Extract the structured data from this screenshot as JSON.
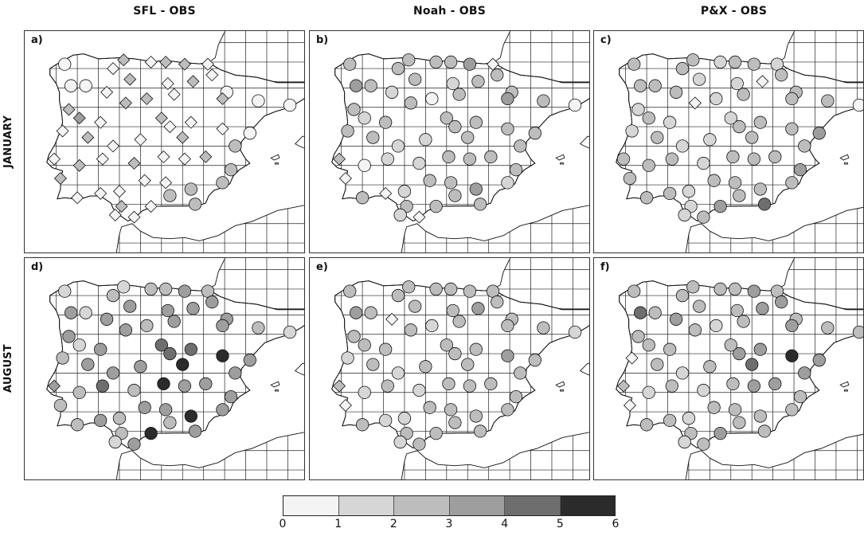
{
  "columns": [
    "SFL - OBS",
    "Noah - OBS",
    "P&X - OBS"
  ],
  "rows": [
    "JANUARY",
    "AUGUST"
  ],
  "panel_labels": [
    "a)",
    "b)",
    "c)",
    "d)",
    "e)",
    "f)"
  ],
  "colorbar": {
    "ticks": [
      "0",
      "1",
      "2",
      "3",
      "4",
      "5",
      "6"
    ],
    "colors": [
      "#f4f4f4",
      "#d6d6d6",
      "#bdbdbd",
      "#9e9e9e",
      "#6e6e6e",
      "#2b2b2b"
    ]
  },
  "colors": {
    "land": "#ffffff",
    "coast": "#111111",
    "grid": "#222222",
    "marker_stroke": "#111111"
  },
  "stations": [
    {
      "id": 1,
      "lon": -8.6,
      "lat": 43.3
    },
    {
      "id": 2,
      "lon": -8.3,
      "lat": 42.3
    },
    {
      "id": 3,
      "lon": -7.6,
      "lat": 42.3
    },
    {
      "id": 4,
      "lon": -6.3,
      "lat": 43.1
    },
    {
      "id": 5,
      "lon": -5.8,
      "lat": 43.5
    },
    {
      "id": 6,
      "lon": -4.5,
      "lat": 43.4
    },
    {
      "id": 7,
      "lon": -3.8,
      "lat": 43.4
    },
    {
      "id": 8,
      "lon": -2.9,
      "lat": 43.3
    },
    {
      "id": 9,
      "lon": -1.8,
      "lat": 43.3
    },
    {
      "id": 10,
      "lon": -1.6,
      "lat": 42.8
    },
    {
      "id": 11,
      "lon": -2.5,
      "lat": 42.5
    },
    {
      "id": 12,
      "lon": -3.7,
      "lat": 42.4
    },
    {
      "id": 13,
      "lon": -5.5,
      "lat": 42.6
    },
    {
      "id": 14,
      "lon": -6.6,
      "lat": 42.0
    },
    {
      "id": 15,
      "lon": -5.7,
      "lat": 41.5
    },
    {
      "id": 16,
      "lon": -4.7,
      "lat": 41.7
    },
    {
      "id": 17,
      "lon": -3.4,
      "lat": 41.9
    },
    {
      "id": 18,
      "lon": -0.9,
      "lat": 42.0
    },
    {
      "id": 19,
      "lon": -1.1,
      "lat": 41.7
    },
    {
      "id": 20,
      "lon": 0.6,
      "lat": 41.6
    },
    {
      "id": 21,
      "lon": 2.1,
      "lat": 41.4
    },
    {
      "id": 22,
      "lon": -8.4,
      "lat": 41.2
    },
    {
      "id": 23,
      "lon": -7.9,
      "lat": 40.8
    },
    {
      "id": 24,
      "lon": -6.9,
      "lat": 40.6
    },
    {
      "id": 25,
      "lon": -4.0,
      "lat": 40.8
    },
    {
      "id": 26,
      "lon": -3.6,
      "lat": 40.4
    },
    {
      "id": 27,
      "lon": -2.6,
      "lat": 40.6
    },
    {
      "id": 28,
      "lon": -1.1,
      "lat": 40.3
    },
    {
      "id": 29,
      "lon": 0.2,
      "lat": 40.1
    },
    {
      "id": 30,
      "lon": -8.7,
      "lat": 40.2
    },
    {
      "id": 31,
      "lon": -7.5,
      "lat": 39.9
    },
    {
      "id": 32,
      "lon": -6.3,
      "lat": 39.5
    },
    {
      "id": 33,
      "lon": -5.0,
      "lat": 39.8
    },
    {
      "id": 34,
      "lon": -3.0,
      "lat": 39.9
    },
    {
      "id": 35,
      "lon": -1.9,
      "lat": 39.0
    },
    {
      "id": 36,
      "lon": -0.5,
      "lat": 39.5
    },
    {
      "id": 37,
      "lon": -9.1,
      "lat": 38.9
    },
    {
      "id": 38,
      "lon": -7.9,
      "lat": 38.6
    },
    {
      "id": 39,
      "lon": -6.8,
      "lat": 38.9
    },
    {
      "id": 40,
      "lon": -5.3,
      "lat": 38.7
    },
    {
      "id": 41,
      "lon": -3.9,
      "lat": 39.0
    },
    {
      "id": 42,
      "lon": -2.9,
      "lat": 38.9
    },
    {
      "id": 43,
      "lon": -0.7,
      "lat": 38.4
    },
    {
      "id": 44,
      "lon": -8.8,
      "lat": 38.0
    },
    {
      "id": 45,
      "lon": -6.0,
      "lat": 37.4
    },
    {
      "id": 46,
      "lon": -4.8,
      "lat": 37.9
    },
    {
      "id": 47,
      "lon": -3.8,
      "lat": 37.8
    },
    {
      "id": 48,
      "lon": -2.6,
      "lat": 37.5
    },
    {
      "id": 49,
      "lon": -1.1,
      "lat": 37.8
    },
    {
      "id": 50,
      "lon": -8.0,
      "lat": 37.1
    },
    {
      "id": 51,
      "lon": -6.9,
      "lat": 37.3
    },
    {
      "id": 52,
      "lon": -5.9,
      "lat": 36.7
    },
    {
      "id": 53,
      "lon": -4.5,
      "lat": 36.7
    },
    {
      "id": 54,
      "lon": -3.6,
      "lat": 37.2
    },
    {
      "id": 55,
      "lon": -2.4,
      "lat": 36.8
    },
    {
      "id": 56,
      "lon": -6.2,
      "lat": 36.3
    },
    {
      "id": 57,
      "lon": -5.3,
      "lat": 36.2
    }
  ],
  "panels": [
    {
      "label": "a)",
      "markers": {
        "1": "C",
        "2": "C",
        "3": "C",
        "4": "D",
        "5": "D",
        "6": "D",
        "7": "D",
        "8": "D",
        "9": "D",
        "10": "D",
        "11": "D",
        "12": "D",
        "13": "D",
        "14": "D",
        "15": "D",
        "16": "D",
        "17": "D",
        "18": "C",
        "19": "D",
        "20": "C",
        "21": "C",
        "22": "D",
        "23": "D",
        "24": "D",
        "25": "D",
        "26": "D",
        "27": "D",
        "28": "D",
        "29": "C",
        "30": "D",
        "31": "D",
        "32": "D",
        "33": "D",
        "34": "D",
        "35": "D",
        "36": "C",
        "37": "D",
        "38": "D",
        "39": "D",
        "40": "D",
        "41": "D",
        "42": "D",
        "43": "C",
        "44": "D",
        "45": "D",
        "46": "D",
        "47": "D",
        "48": "C",
        "49": "C",
        "50": "D",
        "51": "D",
        "52": "D",
        "53": "D",
        "54": "C",
        "55": "C",
        "56": "D",
        "57": "D"
      },
      "values": {
        "1": 0.8,
        "2": 0.8,
        "3": 0.8,
        "4": 0.8,
        "5": 2.6,
        "6": 0.8,
        "7": 2.5,
        "8": 2.6,
        "9": 0.7,
        "10": 0.8,
        "11": 2.6,
        "12": 0.8,
        "13": 2.5,
        "14": 0.8,
        "15": 2.5,
        "16": 2.5,
        "17": 0.8,
        "18": 0.8,
        "19": 2.4,
        "20": 0.8,
        "21": 0.8,
        "22": 2.4,
        "23": 3.4,
        "24": 0.8,
        "25": 2.4,
        "26": 0.8,
        "27": 0.8,
        "28": 0.8,
        "29": 0.8,
        "30": 0.8,
        "31": 2.3,
        "32": 0.8,
        "33": 0.8,
        "34": 2.3,
        "35": 2.4,
        "36": 2.0,
        "37": 0.8,
        "38": 2.4,
        "39": 0.8,
        "40": 2.2,
        "41": 0.8,
        "42": 0.8,
        "43": 2.1,
        "44": 2.4,
        "45": 0.8,
        "46": 0.8,
        "47": 0.8,
        "48": 2.4,
        "49": 2.6,
        "50": 0.8,
        "51": 0.8,
        "52": 2.0,
        "53": 0.8,
        "54": 2.8,
        "55": 2.8,
        "56": 0.8,
        "57": 0.8
      }
    },
    {
      "label": "b)",
      "markers": {
        "1": "C",
        "2": "C",
        "3": "C",
        "4": "C",
        "5": "C",
        "6": "C",
        "7": "C",
        "8": "C",
        "9": "D",
        "10": "C",
        "11": "C",
        "12": "C",
        "13": "C",
        "14": "C",
        "15": "C",
        "16": "C",
        "17": "C",
        "18": "C",
        "19": "C",
        "20": "C",
        "21": "C",
        "22": "C",
        "23": "C",
        "24": "C",
        "25": "C",
        "26": "C",
        "27": "C",
        "28": "C",
        "29": "C",
        "30": "C",
        "31": "C",
        "32": "C",
        "33": "C",
        "34": "C",
        "35": "C",
        "36": "C",
        "37": "D",
        "38": "C",
        "39": "C",
        "40": "C",
        "41": "C",
        "42": "C",
        "43": "C",
        "44": "D",
        "45": "C",
        "46": "C",
        "47": "C",
        "48": "C",
        "49": "C",
        "50": "C",
        "51": "D",
        "52": "C",
        "53": "C",
        "54": "C",
        "55": "C",
        "56": "C",
        "57": "D"
      },
      "values": {
        "1": 2.6,
        "2": 3.9,
        "3": 2.2,
        "4": 2.3,
        "5": 2.6,
        "6": 2.4,
        "7": 2.2,
        "8": 3.3,
        "9": 0.8,
        "10": 2.6,
        "11": 2.4,
        "12": 1.6,
        "13": 2.3,
        "14": 1.0,
        "15": 2.5,
        "16": 0.8,
        "17": 2.4,
        "18": 2.5,
        "19": 3.4,
        "20": 2.4,
        "21": 0.8,
        "22": 2.4,
        "23": 1.5,
        "24": 2.6,
        "25": 2.4,
        "26": 2.4,
        "27": 2.5,
        "28": 2.5,
        "29": 2.3,
        "30": 2.5,
        "31": 2.4,
        "32": 1.8,
        "33": 1.0,
        "34": 2.4,
        "35": 2.4,
        "36": 2.3,
        "37": 2.5,
        "38": 0.8,
        "39": 1.8,
        "40": 1.0,
        "41": 2.4,
        "42": 2.4,
        "43": 2.2,
        "44": 0.8,
        "45": 1.0,
        "46": 2.4,
        "47": 2.4,
        "48": 3.5,
        "49": 1.0,
        "50": 2.3,
        "51": 0.8,
        "52": 2.0,
        "53": 2.2,
        "54": 2.4,
        "55": 2.0,
        "56": 1.0,
        "57": 0.8
      }
    },
    {
      "label": "c)",
      "markers": {
        "1": "C",
        "2": "C",
        "3": "C",
        "4": "C",
        "5": "C",
        "6": "C",
        "7": "C",
        "8": "C",
        "9": "C",
        "10": "C",
        "11": "D",
        "12": "C",
        "13": "C",
        "14": "C",
        "15": "D",
        "16": "C",
        "17": "C",
        "18": "C",
        "19": "C",
        "20": "C",
        "21": "C",
        "22": "C",
        "23": "C",
        "24": "C",
        "25": "C",
        "26": "C",
        "27": "C",
        "28": "C",
        "29": "C",
        "30": "C",
        "31": "C",
        "32": "C",
        "33": "C",
        "34": "C",
        "35": "C",
        "36": "C",
        "37": "C",
        "38": "C",
        "39": "C",
        "40": "C",
        "41": "C",
        "42": "C",
        "43": "C",
        "44": "C",
        "45": "C",
        "46": "C",
        "47": "C",
        "48": "C",
        "49": "C",
        "50": "C",
        "51": "C",
        "52": "C",
        "53": "C",
        "54": "C",
        "55": "C",
        "56": "C",
        "57": "C"
      },
      "values": {
        "1": 2.3,
        "2": 2.3,
        "3": 2.3,
        "4": 2.4,
        "5": 2.4,
        "6": 1.0,
        "7": 2.2,
        "8": 2.3,
        "9": 1.0,
        "10": 2.3,
        "11": 0.8,
        "12": 1.0,
        "13": 1.0,
        "14": 2.4,
        "15": 0.8,
        "16": 1.0,
        "17": 2.2,
        "18": 2.3,
        "19": 2.5,
        "20": 2.6,
        "21": 0.8,
        "22": 1.8,
        "23": 2.3,
        "24": 1.8,
        "25": 1.0,
        "26": 2.4,
        "27": 2.6,
        "28": 2.6,
        "29": 3.0,
        "30": 1.8,
        "31": 2.4,
        "32": 1.0,
        "33": 1.0,
        "34": 2.3,
        "35": 2.6,
        "36": 2.6,
        "37": 2.3,
        "38": 2.4,
        "39": 2.3,
        "40": 1.0,
        "41": 2.3,
        "42": 2.3,
        "43": 3.5,
        "44": 2.3,
        "45": 1.8,
        "46": 2.4,
        "47": 2.3,
        "48": 2.3,
        "49": 2.6,
        "50": 2.3,
        "51": 2.5,
        "52": 1.0,
        "53": 3.9,
        "54": 2.5,
        "55": 4.0,
        "56": 1.0,
        "57": 2.3
      }
    },
    {
      "label": "d)",
      "markers": {
        "1": "C",
        "2": "C",
        "3": "C",
        "4": "C",
        "5": "C",
        "6": "C",
        "7": "C",
        "8": "C",
        "9": "C",
        "10": "C",
        "11": "C",
        "12": "C",
        "13": "C",
        "14": "C",
        "15": "C",
        "16": "C",
        "17": "C",
        "18": "C",
        "19": "C",
        "20": "C",
        "21": "C",
        "22": "C",
        "23": "C",
        "24": "C",
        "25": "C",
        "26": "C",
        "27": "C",
        "28": "C",
        "29": "C",
        "30": "C",
        "31": "C",
        "32": "C",
        "33": "C",
        "34": "C",
        "35": "C",
        "36": "C",
        "37": "D",
        "38": "C",
        "39": "C",
        "40": "C",
        "41": "C",
        "42": "C",
        "43": "C",
        "44": "C",
        "45": "C",
        "46": "C",
        "47": "C",
        "48": "C",
        "49": "C",
        "50": "C",
        "51": "C",
        "52": "C",
        "53": "C",
        "54": "C",
        "55": "C",
        "56": "C",
        "57": "C"
      },
      "values": {
        "1": 1.0,
        "2": 3.2,
        "3": 1.0,
        "4": 2.8,
        "5": 1.0,
        "6": 2.4,
        "7": 2.2,
        "8": 3.8,
        "9": 2.6,
        "10": 3.4,
        "11": 3.8,
        "12": 3.4,
        "13": 3.2,
        "14": 3.0,
        "15": 3.2,
        "16": 2.8,
        "17": 3.2,
        "18": 3.3,
        "19": 3.0,
        "20": 2.6,
        "21": 1.8,
        "22": 3.0,
        "23": 1.0,
        "24": 3.3,
        "25": 4.2,
        "26": 4.8,
        "27": 4.5,
        "28": 5.2,
        "29": 3.2,
        "30": 2.5,
        "31": 3.0,
        "32": 3.2,
        "33": 3.5,
        "34": 5.4,
        "35": 3.8,
        "36": 3.2,
        "37": 3.0,
        "38": 2.4,
        "39": 4.0,
        "40": 2.2,
        "41": 5.2,
        "42": 3.8,
        "43": 3.0,
        "44": 2.3,
        "45": 2.3,
        "46": 3.2,
        "47": 3.5,
        "48": 5.8,
        "49": 3.0,
        "50": 2.2,
        "51": 3.5,
        "52": 2.4,
        "53": 5.7,
        "54": 2.6,
        "55": 3.4,
        "56": 1.8,
        "57": 3.4
      }
    },
    {
      "label": "e)",
      "markers": {
        "1": "C",
        "2": "C",
        "3": "C",
        "4": "C",
        "5": "C",
        "6": "C",
        "7": "C",
        "8": "C",
        "9": "C",
        "10": "C",
        "11": "C",
        "12": "C",
        "13": "C",
        "14": "D",
        "15": "C",
        "16": "C",
        "17": "C",
        "18": "C",
        "19": "C",
        "20": "C",
        "21": "C",
        "22": "C",
        "23": "C",
        "24": "C",
        "25": "C",
        "26": "C",
        "27": "C",
        "28": "C",
        "29": "C",
        "30": "C",
        "31": "C",
        "32": "C",
        "33": "C",
        "34": "C",
        "35": "C",
        "36": "C",
        "37": "D",
        "38": "C",
        "39": "C",
        "40": "C",
        "41": "C",
        "42": "C",
        "43": "C",
        "44": "D",
        "45": "C",
        "46": "C",
        "47": "C",
        "48": "C",
        "49": "C",
        "50": "C",
        "51": "C",
        "52": "C",
        "53": "C",
        "54": "C",
        "55": "C",
        "56": "C",
        "57": "C"
      },
      "values": {
        "1": 2.2,
        "2": 3.4,
        "3": 2.2,
        "4": 2.4,
        "5": 2.3,
        "6": 2.3,
        "7": 2.3,
        "8": 2.8,
        "9": 2.4,
        "10": 2.4,
        "11": 3.0,
        "12": 2.3,
        "13": 2.2,
        "14": 0.8,
        "15": 2.6,
        "16": 1.0,
        "17": 2.2,
        "18": 2.5,
        "19": 2.3,
        "20": 2.3,
        "21": 1.0,
        "22": 2.3,
        "23": 2.3,
        "24": 2.2,
        "25": 2.2,
        "26": 2.5,
        "27": 2.3,
        "28": 3.0,
        "29": 2.3,
        "30": 1.0,
        "31": 2.3,
        "32": 1.0,
        "33": 2.4,
        "34": 2.3,
        "35": 2.3,
        "36": 2.6,
        "37": 2.4,
        "38": 1.0,
        "39": 2.3,
        "40": 1.0,
        "41": 2.3,
        "42": 2.3,
        "43": 2.3,
        "44": 0.8,
        "45": 1.0,
        "46": 2.2,
        "47": 2.2,
        "48": 2.3,
        "49": 2.2,
        "50": 2.2,
        "51": 1.0,
        "52": 2.2,
        "53": 2.2,
        "54": 2.2,
        "55": 2.3,
        "56": 1.0,
        "57": 2.2
      }
    },
    {
      "label": "f)",
      "markers": {
        "1": "C",
        "2": "C",
        "3": "C",
        "4": "C",
        "5": "C",
        "6": "C",
        "7": "C",
        "8": "C",
        "9": "C",
        "10": "C",
        "11": "C",
        "12": "C",
        "13": "C",
        "14": "C",
        "15": "C",
        "16": "C",
        "17": "C",
        "18": "C",
        "19": "C",
        "20": "C",
        "21": "C",
        "22": "C",
        "23": "C",
        "24": "C",
        "25": "C",
        "26": "C",
        "27": "C",
        "28": "C",
        "29": "C",
        "30": "D",
        "31": "C",
        "32": "C",
        "33": "C",
        "34": "C",
        "35": "C",
        "36": "C",
        "37": "D",
        "38": "C",
        "39": "C",
        "40": "C",
        "41": "C",
        "42": "C",
        "43": "C",
        "44": "D",
        "45": "C",
        "46": "C",
        "47": "C",
        "48": "C",
        "49": "C",
        "50": "C",
        "51": "C",
        "52": "C",
        "53": "C",
        "54": "C",
        "55": "C",
        "56": "C",
        "57": "C"
      },
      "values": {
        "1": 2.2,
        "2": 4.0,
        "3": 2.2,
        "4": 2.4,
        "5": 2.3,
        "6": 2.3,
        "7": 2.3,
        "8": 3.6,
        "9": 2.4,
        "10": 3.8,
        "11": 3.4,
        "12": 2.3,
        "13": 2.2,
        "14": 3.4,
        "15": 2.3,
        "16": 1.0,
        "17": 2.6,
        "18": 2.6,
        "19": 3.0,
        "20": 2.5,
        "21": 2.3,
        "22": 2.4,
        "23": 2.3,
        "24": 2.2,
        "25": 2.4,
        "26": 3.0,
        "27": 3.2,
        "28": 5.3,
        "29": 3.2,
        "30": 0.8,
        "31": 2.3,
        "32": 1.0,
        "33": 2.4,
        "34": 4.3,
        "35": 3.2,
        "36": 3.0,
        "37": 2.4,
        "38": 1.0,
        "39": 2.3,
        "40": 1.0,
        "41": 2.3,
        "42": 3.3,
        "43": 2.8,
        "44": 0.8,
        "45": 1.0,
        "46": 2.2,
        "47": 2.3,
        "48": 2.3,
        "49": 2.2,
        "50": 2.2,
        "51": 2.2,
        "52": 2.2,
        "53": 3.9,
        "54": 2.2,
        "55": 2.3,
        "56": 1.0,
        "57": 2.2
      }
    }
  ]
}
